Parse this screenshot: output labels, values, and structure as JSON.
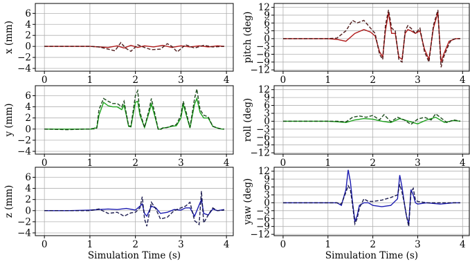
{
  "chart_data": [
    {
      "type": "line",
      "ylabel": "x (mm)",
      "xlabel": "",
      "xlim": [
        -0.2,
        4.15
      ],
      "ylim": [
        -4.5,
        7.8
      ],
      "yticks": [
        -4,
        -2,
        0,
        2,
        4,
        6
      ],
      "xticks": [
        0,
        1,
        2,
        3,
        4
      ],
      "grid": true,
      "color": "#b01a1a",
      "series": [
        {
          "style": "solid",
          "x": [
            0,
            0.5,
            1.0,
            1.2,
            1.4,
            1.6,
            1.75,
            1.9,
            2.05,
            2.2,
            2.4,
            2.6,
            2.8,
            3.0,
            3.2,
            3.4,
            3.6,
            3.8,
            3.95
          ],
          "y": [
            0,
            0,
            0,
            -0.1,
            -0.2,
            0.1,
            -0.3,
            0.2,
            -0.2,
            0.1,
            -0.1,
            0.2,
            -0.2,
            0.1,
            -0.1,
            0.1,
            -0.1,
            0.1,
            0
          ]
        },
        {
          "style": "dashed",
          "x": [
            0,
            0.5,
            1.0,
            1.2,
            1.4,
            1.55,
            1.68,
            1.78,
            1.9,
            2.05,
            2.2,
            2.35,
            2.55,
            2.7,
            2.8,
            2.92,
            3.1,
            3.3,
            3.5,
            3.7,
            3.95
          ],
          "y": [
            0,
            0,
            0,
            -0.1,
            -0.5,
            -0.8,
            0.7,
            -0.3,
            -0.9,
            0.3,
            -0.2,
            -0.6,
            -0.5,
            0.5,
            0,
            -1.0,
            0.3,
            -0.3,
            0.2,
            -0.1,
            0
          ]
        }
      ]
    },
    {
      "type": "line",
      "ylabel": "pitch (deg)",
      "xlabel": "",
      "xlim": [
        -0.2,
        4.15
      ],
      "ylim": [
        -12.5,
        13.5
      ],
      "yticks": [
        -12,
        -9,
        -6,
        -3,
        0,
        3,
        6,
        9,
        12
      ],
      "xticks": [
        0,
        1,
        2,
        3,
        4
      ],
      "grid": true,
      "color": "#b01a1a",
      "series": [
        {
          "style": "solid",
          "x": [
            0,
            0.5,
            1.0,
            1.2,
            1.4,
            1.6,
            1.8,
            1.95,
            2.05,
            2.15,
            2.22,
            2.28,
            2.35,
            2.42,
            2.5,
            2.58,
            2.65,
            2.72,
            2.78,
            2.85,
            2.95,
            3.05,
            3.15,
            3.25,
            3.35,
            3.45,
            3.52,
            3.58,
            3.7,
            3.85,
            3.95
          ],
          "y": [
            0,
            0,
            0,
            -0.3,
            -1.0,
            2.0,
            3.5,
            2.5,
            1.0,
            -5.0,
            -7.0,
            3.0,
            10.0,
            2.0,
            2.0,
            -7.0,
            -8.0,
            2.0,
            3.5,
            3.0,
            2.0,
            3.0,
            -4.0,
            -8.0,
            4.0,
            10.0,
            -9.0,
            -6.0,
            -1.0,
            0,
            0
          ]
        },
        {
          "style": "dashed",
          "x": [
            0,
            0.5,
            1.0,
            1.2,
            1.4,
            1.55,
            1.65,
            1.8,
            1.95,
            2.05,
            2.15,
            2.22,
            2.28,
            2.35,
            2.42,
            2.5,
            2.58,
            2.65,
            2.72,
            2.78,
            2.85,
            2.95,
            3.05,
            3.15,
            3.25,
            3.35,
            3.45,
            3.52,
            3.58,
            3.7,
            3.75,
            3.85,
            3.95
          ],
          "y": [
            0,
            0,
            0,
            0.2,
            3.0,
            7.0,
            6.0,
            7.0,
            4.0,
            2.0,
            -6.0,
            -8.0,
            5.0,
            11.0,
            4.0,
            3.0,
            -8.0,
            -9.0,
            3.0,
            5.0,
            4.0,
            2.0,
            4.0,
            -5.0,
            -9.0,
            5.0,
            11.0,
            -11.0,
            -7.0,
            -2.0,
            -0.5,
            0,
            0
          ]
        }
      ]
    },
    {
      "type": "line",
      "ylabel": "y (mm)",
      "xlabel": "",
      "xlim": [
        -0.2,
        4.15
      ],
      "ylim": [
        -4.5,
        7.8
      ],
      "yticks": [
        -4,
        -2,
        0,
        2,
        4,
        6
      ],
      "xticks": [
        0,
        1,
        2,
        3,
        4
      ],
      "grid": true,
      "color": "#1aa21a",
      "series": [
        {
          "style": "solid",
          "x": [
            0,
            0.5,
            0.9,
            1.0,
            1.05,
            1.1,
            1.15,
            1.2,
            1.3,
            1.4,
            1.5,
            1.6,
            1.7,
            1.75,
            1.8,
            1.85,
            1.9,
            2.0,
            2.05,
            2.1,
            2.2,
            2.3,
            2.35,
            2.42,
            2.5,
            2.55,
            2.6,
            2.7,
            2.8,
            2.9,
            3.0,
            3.05,
            3.1,
            3.2,
            3.3,
            3.35,
            3.42,
            3.5,
            3.6,
            3.7,
            3.8,
            3.9,
            3.95
          ],
          "y": [
            0,
            0,
            0,
            0,
            0,
            0.2,
            0.2,
            2.5,
            4.8,
            4.2,
            4.0,
            4.0,
            3.5,
            4.3,
            2.5,
            0.5,
            0.4,
            4.8,
            5.0,
            2.5,
            0.3,
            3.0,
            4.5,
            2.5,
            0,
            0,
            0.2,
            0.3,
            0.5,
            0.6,
            2.0,
            4.5,
            3.0,
            0.2,
            4.5,
            5.5,
            3.0,
            2.0,
            2.0,
            0.5,
            0.2,
            0,
            0
          ]
        },
        {
          "style": "dashed",
          "x": [
            0,
            0.5,
            0.9,
            1.0,
            1.05,
            1.1,
            1.15,
            1.2,
            1.3,
            1.4,
            1.5,
            1.6,
            1.7,
            1.75,
            1.8,
            1.85,
            1.9,
            2.0,
            2.05,
            2.1,
            2.2,
            2.3,
            2.35,
            2.42,
            2.5,
            2.55,
            2.6,
            2.7,
            2.8,
            2.9,
            3.0,
            3.05,
            3.1,
            3.2,
            3.3,
            3.35,
            3.42,
            3.5,
            3.6,
            3.7,
            3.8,
            3.9,
            3.95
          ],
          "y": [
            0,
            -0.1,
            0,
            0,
            0.1,
            0,
            0.2,
            3.5,
            5.5,
            5.0,
            4.6,
            4.6,
            4.0,
            5.0,
            2.8,
            0.6,
            0.5,
            6.0,
            6.9,
            3.0,
            0.3,
            3.5,
            5.5,
            3.0,
            0,
            -0.1,
            0.2,
            0.3,
            0.6,
            0.8,
            2.5,
            5.0,
            3.5,
            0.3,
            5.5,
            7.2,
            3.5,
            2.5,
            2.2,
            0.5,
            0.2,
            0,
            0
          ]
        }
      ]
    },
    {
      "type": "line",
      "ylabel": "roll (deg)",
      "xlabel": "",
      "xlim": [
        -0.2,
        4.15
      ],
      "ylim": [
        -12.5,
        13.5
      ],
      "yticks": [
        -12,
        -9,
        -6,
        -3,
        0,
        3,
        6,
        9,
        12
      ],
      "xticks": [
        0,
        1,
        2,
        3,
        4
      ],
      "grid": true,
      "color": "#1aa21a",
      "series": [
        {
          "style": "solid",
          "x": [
            0,
            0.5,
            1.0,
            1.2,
            1.4,
            1.6,
            1.8,
            2.0,
            2.2,
            2.4,
            2.6,
            2.8,
            3.0,
            3.2,
            3.4,
            3.6,
            3.8,
            3.95
          ],
          "y": [
            0,
            0,
            0,
            -0.2,
            -0.5,
            0.5,
            1.0,
            0.8,
            0,
            -0.5,
            1.0,
            0,
            -1.0,
            0.5,
            1.5,
            -0.5,
            0.3,
            0
          ]
        },
        {
          "style": "dashed",
          "x": [
            0,
            0.5,
            1.0,
            1.2,
            1.4,
            1.55,
            1.7,
            1.85,
            2.0,
            2.15,
            2.25,
            2.4,
            2.55,
            2.7,
            2.85,
            3.0,
            3.15,
            3.3,
            3.4,
            3.5,
            3.65,
            3.8,
            3.95
          ],
          "y": [
            0,
            0,
            0,
            0,
            -0.3,
            1.5,
            2.0,
            1.5,
            2.2,
            0.5,
            2.5,
            -0.2,
            1.5,
            0.5,
            -1.2,
            0.8,
            1.5,
            0.5,
            2.8,
            1.5,
            -0.5,
            0.5,
            0
          ]
        }
      ]
    },
    {
      "type": "line",
      "ylabel": "z (mm)",
      "xlabel": "Simulation Time (s)",
      "xlim": [
        -0.2,
        4.15
      ],
      "ylim": [
        -4.5,
        7.8
      ],
      "yticks": [
        -4,
        -2,
        0,
        2,
        4,
        6
      ],
      "xticks": [
        0,
        1,
        2,
        3,
        4
      ],
      "grid": true,
      "color": "#1a1ab0",
      "series": [
        {
          "style": "solid",
          "x": [
            0,
            0.5,
            1.0,
            1.2,
            1.4,
            1.6,
            1.8,
            2.0,
            2.1,
            2.15,
            2.2,
            2.25,
            2.35,
            2.45,
            2.55,
            2.7,
            2.85,
            3.0,
            3.1,
            3.2,
            3.3,
            3.4,
            3.45,
            3.5,
            3.6,
            3.7,
            3.8,
            3.95
          ],
          "y": [
            0,
            0,
            0.1,
            0.2,
            0.3,
            0.2,
            0.4,
            0.1,
            0.8,
            1.2,
            -0.5,
            -1.0,
            0.8,
            0.5,
            -0.5,
            -0.3,
            0.2,
            0.1,
            0.5,
            0.5,
            -1.0,
            1.0,
            2.0,
            -0.5,
            -0.8,
            0.3,
            0,
            0.2
          ]
        },
        {
          "style": "dashed",
          "x": [
            0,
            0.5,
            1.0,
            1.2,
            1.4,
            1.6,
            1.75,
            1.9,
            2.0,
            2.1,
            2.15,
            2.2,
            2.25,
            2.35,
            2.45,
            2.55,
            2.7,
            2.85,
            3.0,
            3.1,
            3.2,
            3.3,
            3.4,
            3.45,
            3.5,
            3.6,
            3.7,
            3.8,
            3.95
          ],
          "y": [
            0,
            0,
            0,
            0.3,
            -0.5,
            -0.3,
            -1.0,
            -0.4,
            -0.3,
            0.5,
            2.5,
            -1.5,
            -2.8,
            1.5,
            0.3,
            -1.5,
            -1.2,
            0,
            0.5,
            0.8,
            1.5,
            -1.8,
            -2.5,
            3.5,
            -2.2,
            -0.8,
            0.5,
            0,
            0.1
          ]
        }
      ]
    },
    {
      "type": "line",
      "ylabel": "yaw (deg)",
      "xlabel": "Simulation Time (s)",
      "xlim": [
        -0.2,
        4.15
      ],
      "ylim": [
        -12.5,
        13.5
      ],
      "yticks": [
        -12,
        -9,
        -6,
        -3,
        0,
        3,
        6,
        9,
        12
      ],
      "xticks": [
        0,
        1,
        2,
        3,
        4
      ],
      "grid": true,
      "color": "#1a1ab0",
      "series": [
        {
          "style": "solid",
          "x": [
            0,
            0.5,
            1.0,
            1.2,
            1.3,
            1.4,
            1.45,
            1.5,
            1.55,
            1.6,
            1.65,
            1.7,
            1.8,
            1.9,
            2.0,
            2.2,
            2.4,
            2.55,
            2.6,
            2.65,
            2.7,
            2.75,
            2.8,
            2.85,
            2.9,
            2.95,
            3.0,
            3.2,
            3.5,
            3.8,
            3.95
          ],
          "y": [
            0,
            0,
            0,
            0,
            -1.0,
            5.0,
            12.5,
            8.0,
            0,
            -7.0,
            -5.0,
            -1.0,
            0,
            0,
            -1.0,
            -1.5,
            -1.0,
            1.5,
            10.5,
            6.0,
            0,
            -5.0,
            -8.0,
            5.0,
            3.0,
            0,
            -0.5,
            0,
            -0.5,
            0,
            0
          ]
        },
        {
          "style": "dashed",
          "x": [
            0,
            0.5,
            1.0,
            1.2,
            1.3,
            1.4,
            1.45,
            1.5,
            1.55,
            1.6,
            1.65,
            1.7,
            1.8,
            1.9,
            2.0,
            2.2,
            2.4,
            2.55,
            2.6,
            2.65,
            2.7,
            2.75,
            2.8,
            2.85,
            2.9,
            2.95,
            3.0,
            3.2,
            3.5,
            3.8,
            3.95
          ],
          "y": [
            0,
            0,
            0,
            0,
            -0.5,
            4.0,
            6.5,
            5.0,
            -1.0,
            -8.0,
            -6.0,
            -2.0,
            1.5,
            0.5,
            0.5,
            1.0,
            2.0,
            3.0,
            7.0,
            4.0,
            0,
            -5.0,
            -9.0,
            4.0,
            5.5,
            1.0,
            0.5,
            0,
            0,
            0,
            0
          ]
        }
      ]
    }
  ]
}
